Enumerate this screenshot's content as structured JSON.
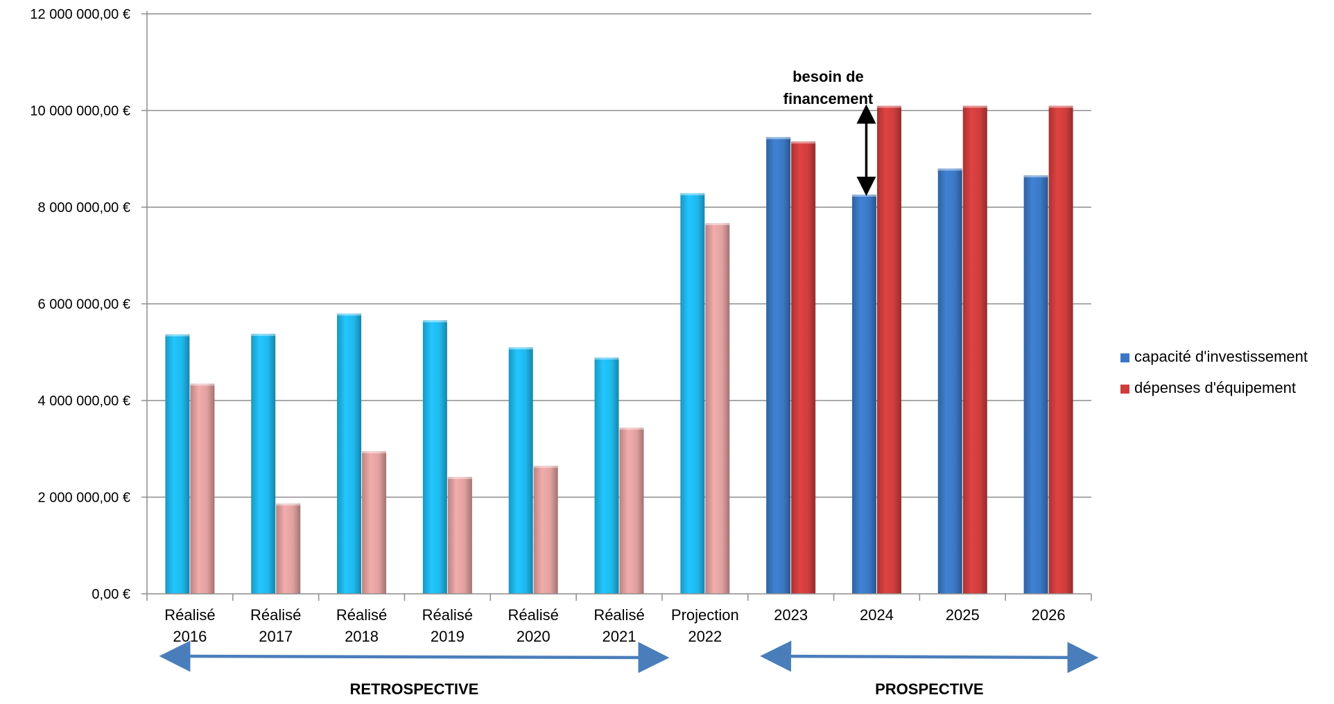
{
  "chart_data": {
    "type": "bar",
    "categories": [
      [
        "Réalisé",
        "2016"
      ],
      [
        "Réalisé",
        "2017"
      ],
      [
        "Réalisé",
        "2018"
      ],
      [
        "Réalisé",
        "2019"
      ],
      [
        "Réalisé",
        "2020"
      ],
      [
        "Réalisé",
        "2021"
      ],
      [
        "Projection",
        "2022"
      ],
      [
        "2023"
      ],
      [
        "2024"
      ],
      [
        "2025"
      ],
      [
        "2026"
      ]
    ],
    "series": [
      {
        "name": "capacité d'investissement",
        "values": [
          5370000,
          5380000,
          5800000,
          5660000,
          5100000,
          4890000,
          8290000,
          9450000,
          8260000,
          8800000,
          8660000
        ],
        "colors": [
          "#1fb8ec",
          "#1fb8ec",
          "#1fb8ec",
          "#1fb8ec",
          "#1fb8ec",
          "#1fb8ec",
          "#1fb8ec",
          "#3a78c4",
          "#3a78c4",
          "#3a78c4",
          "#3a78c4"
        ],
        "legend_color": "#3a78c4"
      },
      {
        "name": "dépenses d'équipement",
        "values": [
          4350000,
          1870000,
          2950000,
          2420000,
          2650000,
          3440000,
          7670000,
          9360000,
          10100000,
          10100000,
          10100000
        ],
        "colors": [
          "#e0a09e",
          "#e0a09e",
          "#e0a09e",
          "#e0a09e",
          "#e0a09e",
          "#e0a09e",
          "#e0a09e",
          "#cf3d3d",
          "#cf3d3d",
          "#cf3d3d",
          "#cf3d3d"
        ],
        "legend_color": "#cf3d3d"
      }
    ],
    "yticks": [
      "0,00 €",
      "2 000 000,00 €",
      "4 000 000,00 €",
      "6 000 000,00 €",
      "8 000 000,00 €",
      "10 000 000,00 €",
      "12 000 000,00 €"
    ],
    "ylim": [
      0,
      12000000
    ],
    "ytick_step": 2000000,
    "grid": true,
    "legend_position": "right",
    "annotation": {
      "lines": [
        "besoin de",
        "financement"
      ],
      "category_index": 8
    },
    "periods": [
      {
        "label": "RETROSPECTIVE",
        "from_category": 0,
        "to_category": 5
      },
      {
        "label": "PROSPECTIVE",
        "from_category": 7,
        "to_category": 10
      }
    ],
    "colors": {
      "gridline": "#8c8c8c",
      "axis": "#8c8c8c",
      "period_arrow": "#4a7ebb",
      "annotation_arrow": "#000000"
    }
  }
}
